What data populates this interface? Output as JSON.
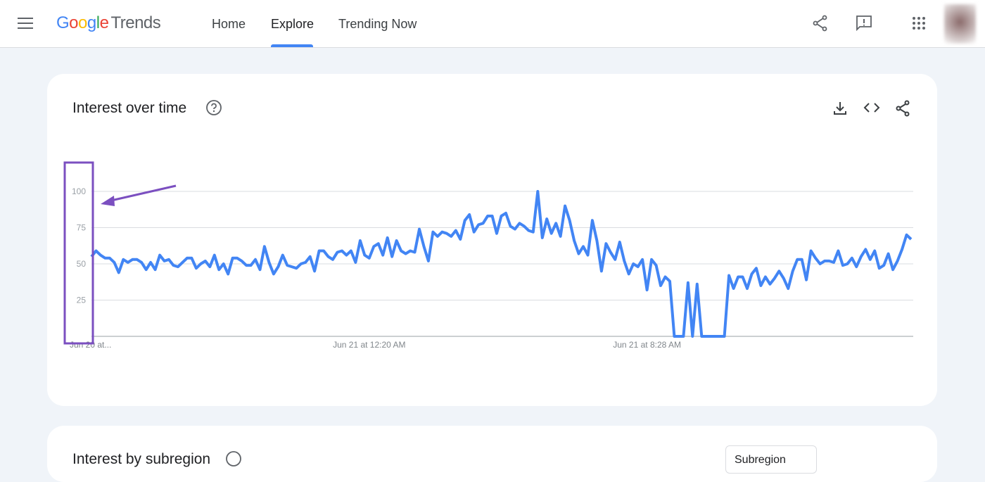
{
  "header": {
    "logo_brand": "Google",
    "logo_product": "Trends",
    "nav": [
      "Home",
      "Explore",
      "Trending Now"
    ],
    "active_nav": 1
  },
  "cards": [
    {
      "title": "Interest over time",
      "chart_data": {
        "type": "line",
        "categories": [
          "Jun 20 at...",
          null,
          null,
          null,
          null,
          null,
          null,
          null,
          null,
          null,
          null,
          null,
          null,
          null,
          null,
          null,
          null,
          null,
          null,
          null,
          null,
          null,
          null,
          null,
          null,
          null,
          null,
          null,
          null,
          null,
          null,
          null,
          null,
          null,
          null,
          null,
          null,
          null,
          null,
          null,
          null,
          null,
          null,
          null,
          null,
          null,
          null,
          null,
          null,
          null,
          null,
          null,
          null,
          null,
          null,
          null,
          null,
          null,
          null,
          null,
          null,
          "Jun 21 at 12:20 AM",
          null,
          null,
          null,
          null,
          null,
          null,
          null,
          null,
          null,
          null,
          null,
          null,
          null,
          null,
          null,
          null,
          null,
          null,
          null,
          null,
          null,
          null,
          null,
          null,
          null,
          null,
          null,
          null,
          null,
          null,
          null,
          null,
          null,
          null,
          null,
          null,
          null,
          null,
          null,
          null,
          null,
          null,
          null,
          null,
          null,
          null,
          null,
          null,
          null,
          null,
          null,
          null,
          null,
          null,
          null,
          null,
          null,
          null,
          null,
          null,
          "Jun 21 at 8:28 AM",
          null,
          null,
          null,
          null,
          null,
          null,
          null,
          null,
          null,
          null,
          null,
          null,
          null,
          null,
          null,
          null,
          null,
          null,
          null,
          null,
          null,
          null,
          null,
          null,
          null,
          null,
          null,
          null,
          null,
          null,
          null,
          null,
          null,
          null,
          null,
          null,
          null,
          null,
          null,
          null,
          null,
          null,
          null,
          null,
          null,
          null,
          null,
          null,
          null,
          null,
          null,
          null,
          null,
          null,
          null,
          null,
          null,
          null
        ],
        "series": [
          {
            "color": "#4285f4",
            "values": [
              55,
              59,
              56,
              54,
              54,
              51,
              44,
              53,
              51,
              53,
              53,
              51,
              46,
              51,
              46,
              56,
              52,
              53,
              49,
              48,
              51,
              54,
              54,
              47,
              50,
              52,
              48,
              56,
              46,
              50,
              43,
              54,
              54,
              52,
              49,
              49,
              53,
              46,
              62,
              51,
              43,
              48,
              56,
              49,
              48,
              47,
              50,
              51,
              55,
              45,
              59,
              59,
              55,
              53,
              58,
              59,
              56,
              59,
              51,
              66,
              56,
              54,
              62,
              64,
              56,
              68,
              55,
              66,
              59,
              57,
              59,
              58,
              74,
              62,
              52,
              72,
              69,
              72,
              71,
              69,
              73,
              67,
              80,
              84,
              72,
              77,
              78,
              83,
              83,
              71,
              83,
              85,
              76,
              74,
              78,
              76,
              73,
              72,
              100,
              68,
              81,
              71,
              78,
              69,
              90,
              80,
              66,
              57,
              62,
              56,
              80,
              66,
              45,
              64,
              58,
              53,
              65,
              52,
              43,
              50,
              48,
              53,
              32,
              53,
              49,
              35,
              41,
              38,
              0,
              0,
              0,
              37,
              0,
              36,
              0,
              0,
              0,
              0,
              0,
              0,
              42,
              33,
              41,
              41,
              33,
              43,
              47,
              35,
              41,
              36,
              40,
              45,
              40,
              33,
              45,
              53,
              53,
              39,
              59,
              54,
              50,
              52,
              52,
              51,
              59,
              49,
              50,
              54,
              48,
              55,
              60,
              53,
              59,
              47,
              49,
              57,
              46,
              52,
              60,
              70,
              67
            ]
          }
        ],
        "ylim": [
          0,
          100
        ],
        "yticks": [
          25,
          50,
          75,
          100
        ],
        "grid": true
      }
    },
    {
      "title": "Interest by subregion",
      "dropdown": "Subregion"
    }
  ]
}
